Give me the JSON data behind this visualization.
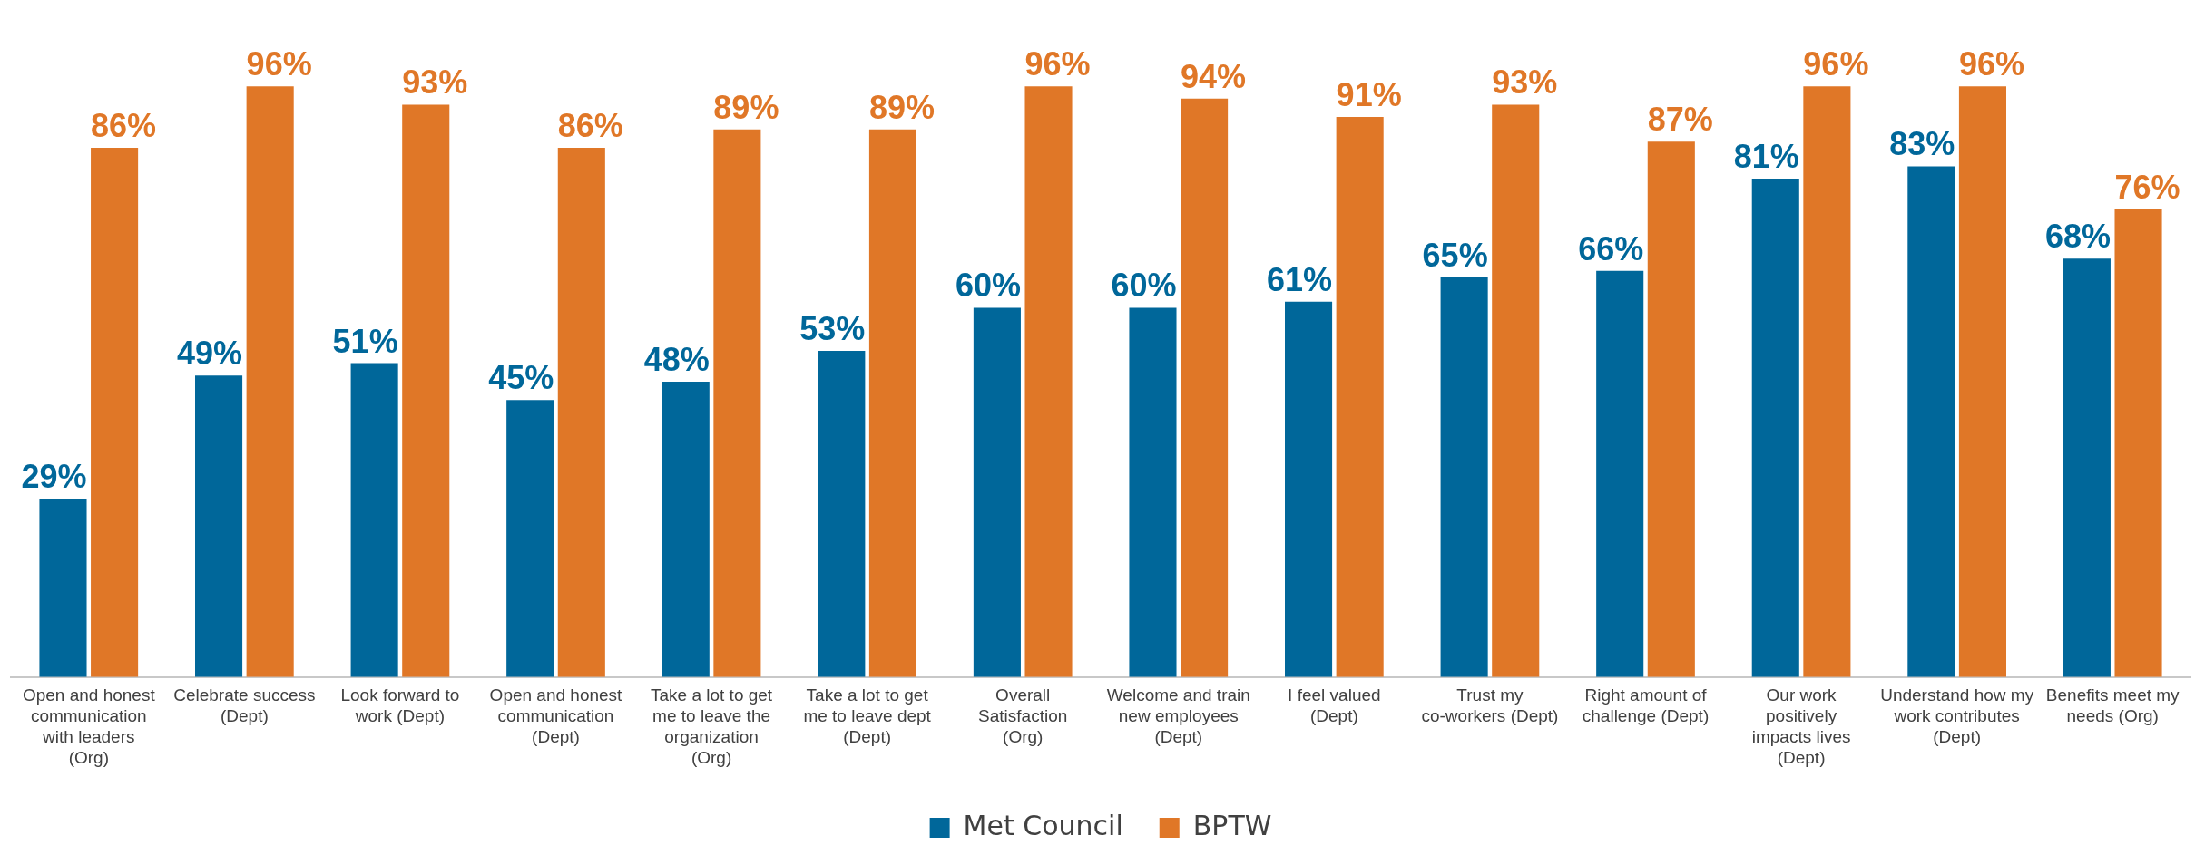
{
  "chart_data": {
    "type": "bar",
    "categories": [
      "Open and honest communication with leaders (Org)",
      "Celebrate success (Dept)",
      "Look forward to work (Dept)",
      "Open and honest communication (Dept)",
      "Take a lot to get me to leave the organization (Org)",
      "Take a lot to get me to leave dept (Dept)",
      "Overall Satisfaction (Org)",
      "Welcome and train new employees (Dept)",
      "I feel valued (Dept)",
      "Trust my co-workers (Dept)",
      "Right amount of challenge (Dept)",
      "Our work positively impacts lives (Dept)",
      "Understand how my work contributes (Dept)",
      "Benefits meet my needs (Org)"
    ],
    "series": [
      {
        "name": "Met Council",
        "color": "#00679a",
        "values": [
          29,
          49,
          51,
          45,
          48,
          53,
          60,
          60,
          61,
          65,
          66,
          81,
          83,
          68
        ],
        "value_labels": [
          "29%",
          "49%",
          "51%",
          "45%",
          "48%",
          "53%",
          "60%",
          "60%",
          "61%",
          "65%",
          "66%",
          "81%",
          "83%",
          "68%"
        ]
      },
      {
        "name": "BPTW",
        "color": "#e07727",
        "values": [
          86,
          96,
          93,
          86,
          89,
          89,
          96,
          94,
          91,
          93,
          87,
          96,
          96,
          76
        ],
        "value_labels": [
          "86%",
          "96%",
          "93%",
          "86%",
          "89%",
          "89%",
          "96%",
          "94%",
          "91%",
          "93%",
          "87%",
          "96%",
          "96%",
          "76%"
        ]
      }
    ],
    "legend": "bottom",
    "grid": false
  }
}
